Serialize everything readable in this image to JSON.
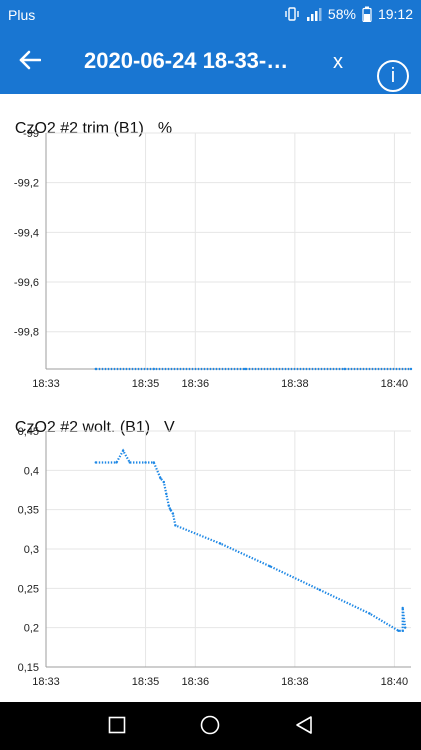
{
  "status_bar": {
    "carrier": "Plus",
    "battery": "58%",
    "time": "19:12",
    "icons": [
      "vibrate-icon",
      "signal-icon",
      "battery-icon"
    ]
  },
  "app_bar": {
    "title": "2020-06-24 18-33-…",
    "close_label": "x",
    "info_label": "i",
    "back_icon": "arrow-left-icon",
    "color": "#1976d2"
  },
  "charts": [
    {
      "title": "CzO2 #2 trim (B1)",
      "unit": "%"
    },
    {
      "title": "CzO2 #2 wolt. (B1)",
      "unit": "V"
    }
  ],
  "chart_data": [
    {
      "type": "line",
      "title": "CzO2 #2 trim (B1)",
      "ylabel": "%",
      "color": "#1e88e5",
      "grid": true,
      "xlim": [
        "18:33",
        "18:40:20"
      ],
      "ylim": [
        -99.95,
        -99
      ],
      "x_ticks": [
        "18:33",
        "18:35",
        "18:36",
        "18:38",
        "18:40"
      ],
      "y_ticks": [
        "-99",
        "-99,2",
        "-99,4",
        "-99,6",
        "-99,8"
      ],
      "y_tick_values": [
        -99,
        -99.2,
        -99.4,
        -99.6,
        -99.8
      ],
      "series": [
        {
          "x": [
            "18:34:00",
            "18:35:10",
            "18:37:00",
            "18:39:00",
            "18:40:20"
          ],
          "values": [
            -99.95,
            -99.95,
            -99.95,
            -99.95,
            -99.95
          ]
        }
      ]
    },
    {
      "type": "line",
      "title": "CzO2 #2 wolt. (B1)",
      "ylabel": "V",
      "color": "#1e88e5",
      "grid": true,
      "xlim": [
        "18:33",
        "18:40:20"
      ],
      "ylim": [
        0.15,
        0.45
      ],
      "x_ticks": [
        "18:33",
        "18:35",
        "18:36",
        "18:38",
        "18:40"
      ],
      "y_ticks": [
        "0,45",
        "0,4",
        "0,35",
        "0,3",
        "0,25",
        "0,2",
        "0,15"
      ],
      "y_tick_values": [
        0.45,
        0.4,
        0.35,
        0.3,
        0.25,
        0.2,
        0.15
      ],
      "series": [
        {
          "x": [
            "18:34:00",
            "18:34:25",
            "18:34:33",
            "18:34:41",
            "18:35:00",
            "18:35:10",
            "18:35:18",
            "18:35:22",
            "18:35:25",
            "18:35:28",
            "18:35:30",
            "18:35:33",
            "18:35:36",
            "18:36:30",
            "18:37:30",
            "18:38:30",
            "18:39:30",
            "18:40:05",
            "18:40:10",
            "18:40:10",
            "18:40:13"
          ],
          "values": [
            0.41,
            0.41,
            0.425,
            0.41,
            0.41,
            0.41,
            0.39,
            0.385,
            0.37,
            0.355,
            0.35,
            0.345,
            0.33,
            0.307,
            0.278,
            0.248,
            0.218,
            0.196,
            0.196,
            0.225,
            0.2
          ]
        }
      ]
    }
  ],
  "nav_bar": {
    "icons": [
      "recent-apps-icon",
      "home-icon",
      "back-icon"
    ]
  }
}
